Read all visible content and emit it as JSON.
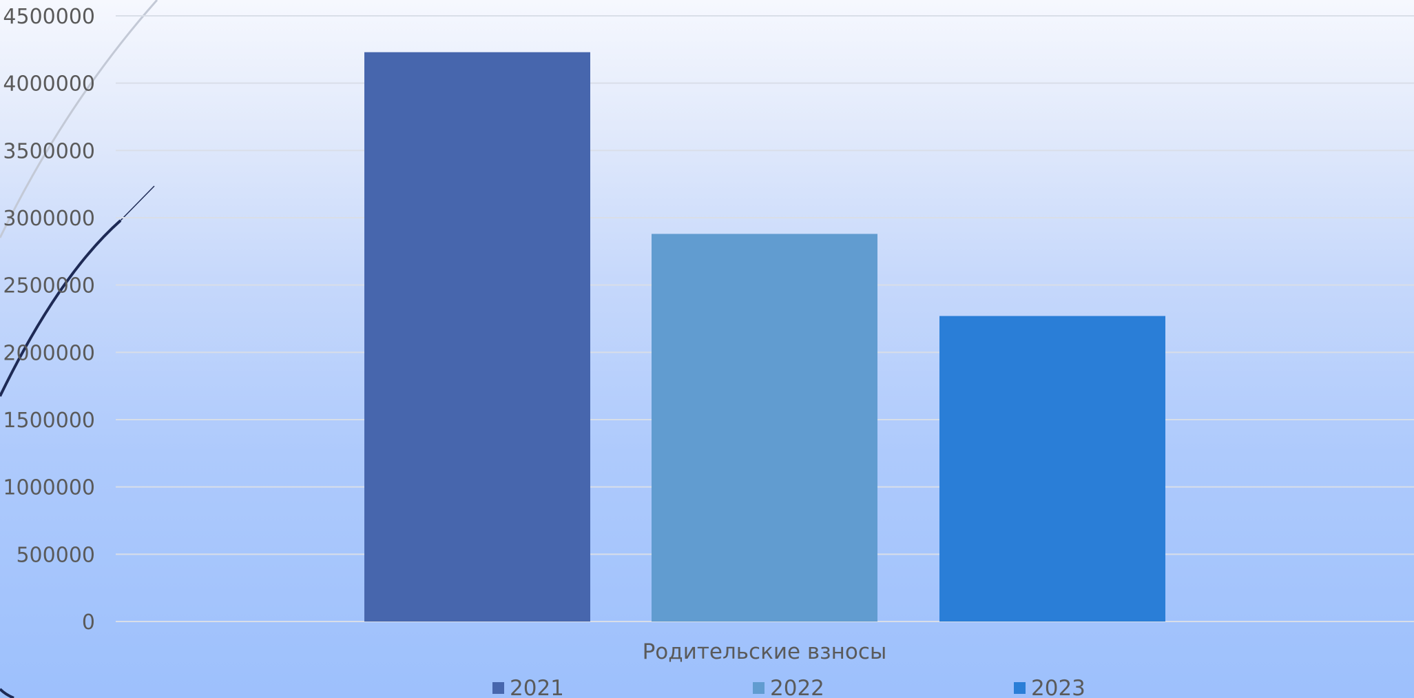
{
  "chart_data": {
    "type": "bar",
    "categories": [
      "Родительские взносы"
    ],
    "series": [
      {
        "name": "2021",
        "values": [
          4230000
        ],
        "color": "#4766ad"
      },
      {
        "name": "2022",
        "values": [
          2880000
        ],
        "color": "#619cd0"
      },
      {
        "name": "2023",
        "values": [
          2270000
        ],
        "color": "#2a7ed7"
      }
    ],
    "y_ticks": [
      "0",
      "500000",
      "1000000",
      "1500000",
      "2000000",
      "2500000",
      "3000000",
      "3500000",
      "4000000",
      "4500000"
    ],
    "ylim": [
      0,
      4500000
    ],
    "grid": true,
    "legend_position": "bottom",
    "title": "",
    "xlabel": "",
    "ylabel": ""
  },
  "style": {
    "gridline_color": "#d9dee8",
    "text_color": "#5a5a5a",
    "decor_arc_light": "#c3c9d6",
    "decor_arc_dark": "#1e2a55"
  }
}
